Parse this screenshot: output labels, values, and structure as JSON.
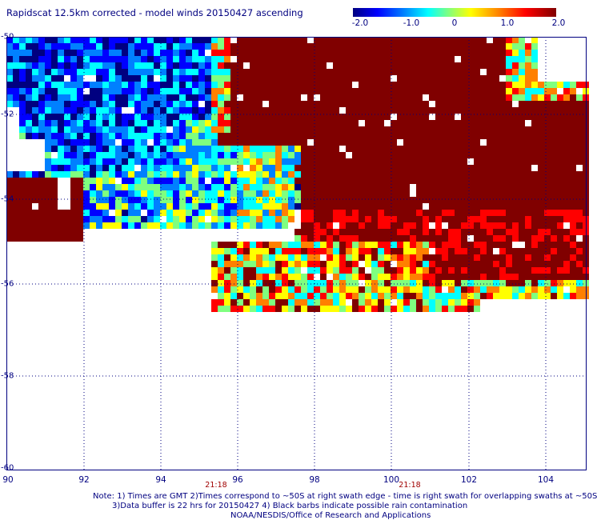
{
  "title": "Rapidscat 12.5km corrected - model winds 20150427 ascending",
  "colorbar": {
    "labels": [
      "-2.0",
      "-1.0",
      "0",
      "1.0",
      "2.0"
    ],
    "colors": [
      "#000080",
      "#0000ff",
      "#0080ff",
      "#00ffff",
      "#7fff7f",
      "#ffff00",
      "#ff8000",
      "#ff0000",
      "#800000"
    ]
  },
  "axes": {
    "lat_labels": [
      "-50",
      "-52",
      "-54",
      "-56",
      "-58",
      "-60"
    ],
    "lon_labels": [
      "90",
      "92",
      "94",
      "96",
      "98",
      "100",
      "102",
      "104"
    ],
    "lat_range": [
      -60,
      -50
    ],
    "lon_range": [
      90,
      105
    ]
  },
  "time_labels": [
    "21:18",
    "21:18"
  ],
  "footer": {
    "line1": "Note: 1) Times are GMT 2)Times correspond to ~50S at right swath edge - time is right swath for overlapping swaths at ~50S",
    "line2": "3)Data buffer is 22 hrs for 20150427 4) Black barbs indicate possible rain contamination",
    "line3": "NOAA/NESDIS/Office of Research and Applications"
  }
}
